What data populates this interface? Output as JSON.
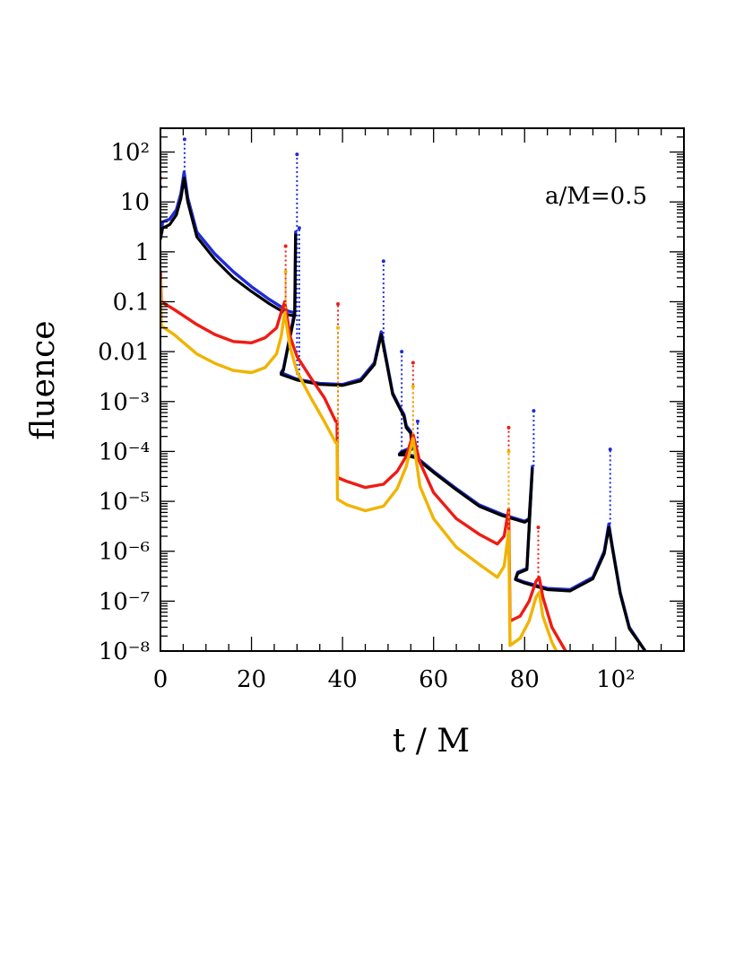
{
  "chart_data": {
    "type": "line",
    "xlabel": "t / M",
    "ylabel": "fluence",
    "annotation": "a/M=0.5",
    "xlim": [
      0,
      115
    ],
    "ylim": [
      1e-08,
      300
    ],
    "y_scale": "log",
    "grid": false,
    "x_ticks": [
      {
        "value": 0,
        "label": "0"
      },
      {
        "value": 20,
        "label": "20"
      },
      {
        "value": 40,
        "label": "40"
      },
      {
        "value": 60,
        "label": "60"
      },
      {
        "value": 80,
        "label": "80"
      },
      {
        "value": 100,
        "label": "10²"
      }
    ],
    "y_ticks": [
      {
        "value": 100,
        "label": "10²"
      },
      {
        "value": 10,
        "label": "10"
      },
      {
        "value": 1,
        "label": "1"
      },
      {
        "value": 0.1,
        "label": "0.1"
      },
      {
        "value": 0.01,
        "label": "0.01"
      },
      {
        "value": 0.001,
        "label": "10⁻³"
      },
      {
        "value": 0.0001,
        "label": "10⁻⁴"
      },
      {
        "value": 1e-05,
        "label": "10⁻⁵"
      },
      {
        "value": 1e-06,
        "label": "10⁻⁶"
      },
      {
        "value": 1e-07,
        "label": "10⁻⁷"
      },
      {
        "value": 1e-08,
        "label": "10⁻⁸"
      }
    ],
    "series": [
      {
        "color": "#1f2bd6",
        "points": [
          [
            0,
            2
          ],
          [
            0.5,
            4
          ],
          [
            2,
            4.5
          ],
          [
            3.5,
            7
          ],
          [
            4.5,
            15
          ],
          [
            5.2,
            40
          ],
          [
            6,
            12
          ],
          [
            8,
            2.5
          ],
          [
            12,
            0.9
          ],
          [
            16,
            0.4
          ],
          [
            20,
            0.2
          ],
          [
            24,
            0.11
          ],
          [
            28,
            0.065
          ],
          [
            29.5,
            0.06
          ],
          [
            29.7,
            2.5
          ],
          [
            29.5,
            0.065
          ],
          [
            28,
            0.013
          ],
          [
            27,
            0.0045
          ],
          [
            26.5,
            0.0038
          ],
          [
            30,
            0.0028
          ],
          [
            35,
            0.0023
          ],
          [
            40,
            0.0022
          ],
          [
            44,
            0.0028
          ],
          [
            47,
            0.006
          ],
          [
            48.5,
            0.025
          ],
          [
            49.3,
            0.01
          ],
          [
            51,
            0.0015
          ],
          [
            52.5,
            0.0008
          ],
          [
            53.5,
            0.00055
          ],
          [
            54,
            0.00033
          ],
          [
            55,
            0.00025
          ],
          [
            55.2,
            0.00012
          ],
          [
            53,
            0.0001
          ],
          [
            52.5,
            9e-05
          ],
          [
            53.5,
            9e-05
          ],
          [
            56,
            8e-05
          ],
          [
            60,
            4e-05
          ],
          [
            65,
            1.8e-05
          ],
          [
            70,
            8.5e-06
          ],
          [
            75,
            5.5e-06
          ],
          [
            80,
            4e-06
          ],
          [
            81,
            4.5e-06
          ],
          [
            81.7,
            5e-05
          ],
          [
            80.5,
            4.5e-07
          ],
          [
            78.5,
            3.8e-07
          ],
          [
            78,
            2.8e-07
          ],
          [
            80,
            2.4e-07
          ],
          [
            85,
            1.8e-07
          ],
          [
            90,
            1.7e-07
          ],
          [
            95,
            3e-07
          ],
          [
            97.5,
            1e-06
          ],
          [
            98.5,
            3.5e-06
          ],
          [
            99.3,
            1.2e-06
          ],
          [
            101,
            1.5e-07
          ],
          [
            103,
            3e-08
          ],
          [
            106.5,
            1e-08
          ]
        ],
        "spikes": [
          [
            0,
            20
          ],
          [
            5.3,
            180
          ],
          [
            30,
            90
          ],
          [
            30.5,
            3
          ],
          [
            49,
            0.65
          ],
          [
            53,
            0.01
          ],
          [
            56.5,
            0.0004
          ],
          [
            82,
            0.00065
          ],
          [
            98.8,
            0.00011
          ]
        ]
      },
      {
        "color": "#000000",
        "points": [
          [
            0,
            1.8
          ],
          [
            0.5,
            3
          ],
          [
            2,
            3.5
          ],
          [
            3.5,
            5.5
          ],
          [
            4.5,
            12
          ],
          [
            5.2,
            30
          ],
          [
            6,
            10
          ],
          [
            8,
            2
          ],
          [
            12,
            0.7
          ],
          [
            16,
            0.3
          ],
          [
            20,
            0.16
          ],
          [
            24,
            0.09
          ],
          [
            28,
            0.055
          ],
          [
            29.5,
            0.052
          ],
          [
            29.7,
            2.2
          ],
          [
            29.5,
            0.055
          ],
          [
            28,
            0.012
          ],
          [
            27,
            0.0042
          ],
          [
            26.5,
            0.0035
          ],
          [
            30,
            0.0027
          ],
          [
            35,
            0.0022
          ],
          [
            40,
            0.0021
          ],
          [
            44,
            0.0026
          ],
          [
            47,
            0.0055
          ],
          [
            48.5,
            0.022
          ],
          [
            49.3,
            0.009
          ],
          [
            51,
            0.0014
          ],
          [
            52.5,
            0.00075
          ],
          [
            53.5,
            0.0005
          ],
          [
            54,
            0.0003
          ],
          [
            55,
            0.00023
          ],
          [
            55.2,
            0.00011
          ],
          [
            53,
            9.5e-05
          ],
          [
            52.5,
            8.5e-05
          ],
          [
            53.5,
            8.5e-05
          ],
          [
            56,
            7.5e-05
          ],
          [
            60,
            3.8e-05
          ],
          [
            65,
            1.7e-05
          ],
          [
            70,
            8e-06
          ],
          [
            75,
            5.2e-06
          ],
          [
            80,
            3.8e-06
          ],
          [
            81,
            4.3e-06
          ],
          [
            81.7,
            4.5e-05
          ],
          [
            80.5,
            4.3e-07
          ],
          [
            78.5,
            3.6e-07
          ],
          [
            78,
            2.7e-07
          ],
          [
            80,
            2.3e-07
          ],
          [
            85,
            1.7e-07
          ],
          [
            90,
            1.6e-07
          ],
          [
            95,
            2.8e-07
          ],
          [
            97.5,
            9e-07
          ],
          [
            98.5,
            3e-06
          ],
          [
            99.3,
            1.1e-06
          ],
          [
            101,
            1.4e-07
          ],
          [
            103,
            2.8e-08
          ],
          [
            106.5,
            1e-08
          ]
        ],
        "spikes": []
      },
      {
        "color": "#ee1c14",
        "points": [
          [
            0,
            0.4
          ],
          [
            0.2,
            0.1
          ],
          [
            3,
            0.07
          ],
          [
            8,
            0.035
          ],
          [
            12,
            0.022
          ],
          [
            16,
            0.016
          ],
          [
            20,
            0.015
          ],
          [
            23,
            0.019
          ],
          [
            25.5,
            0.03
          ],
          [
            26.5,
            0.06
          ],
          [
            27.3,
            0.1
          ],
          [
            28.5,
            0.02
          ],
          [
            30,
            0.008
          ],
          [
            33,
            0.003
          ],
          [
            36,
            0.0012
          ],
          [
            38.5,
            0.0004
          ],
          [
            38.8,
            0.0004
          ],
          [
            38.9,
            3e-05
          ],
          [
            41,
            2.5e-05
          ],
          [
            45,
            1.9e-05
          ],
          [
            49,
            2.2e-05
          ],
          [
            52,
            4e-05
          ],
          [
            54,
            8e-05
          ],
          [
            55.5,
            0.00022
          ],
          [
            57,
            6e-05
          ],
          [
            60,
            1.5e-05
          ],
          [
            65,
            4.5e-06
          ],
          [
            70,
            2.2e-06
          ],
          [
            74,
            1.4e-06
          ],
          [
            75.5,
            2e-06
          ],
          [
            76.5,
            7e-06
          ],
          [
            76.8,
            4e-08
          ],
          [
            79,
            5e-08
          ],
          [
            81,
            1e-07
          ],
          [
            82.5,
            2.5e-07
          ],
          [
            83.2,
            3e-07
          ],
          [
            84,
            1.2e-07
          ],
          [
            86,
            3e-08
          ],
          [
            89,
            1e-08
          ]
        ],
        "spikes": [
          [
            0,
            30
          ],
          [
            27.5,
            1.3
          ],
          [
            39,
            0.09
          ],
          [
            55.5,
            0.006
          ],
          [
            76.5,
            0.0003
          ],
          [
            83,
            3e-06
          ]
        ]
      },
      {
        "color": "#f0b400",
        "points": [
          [
            0,
            0.3
          ],
          [
            0.2,
            0.033
          ],
          [
            3,
            0.022
          ],
          [
            8,
            0.009
          ],
          [
            12,
            0.0058
          ],
          [
            16,
            0.0042
          ],
          [
            20,
            0.0038
          ],
          [
            23,
            0.0048
          ],
          [
            25.5,
            0.009
          ],
          [
            26.5,
            0.02
          ],
          [
            27.3,
            0.06
          ],
          [
            28.5,
            0.012
          ],
          [
            30,
            0.004
          ],
          [
            33,
            0.0012
          ],
          [
            36,
            0.0004
          ],
          [
            38.5,
            0.00015
          ],
          [
            38.8,
            0.00015
          ],
          [
            38.9,
            1.1e-05
          ],
          [
            41,
            8.5e-06
          ],
          [
            45,
            6.5e-06
          ],
          [
            49,
            8e-06
          ],
          [
            52,
            1.8e-05
          ],
          [
            54,
            5e-05
          ],
          [
            55.5,
            0.00018
          ],
          [
            57,
            2e-05
          ],
          [
            60,
            4.5e-06
          ],
          [
            65,
            1.2e-06
          ],
          [
            70,
            5.5e-07
          ],
          [
            74,
            3e-07
          ],
          [
            75.5,
            5e-07
          ],
          [
            76.5,
            2.5e-06
          ],
          [
            76.8,
            1.3e-08
          ],
          [
            79,
            1.8e-08
          ],
          [
            81,
            4e-08
          ],
          [
            82.5,
            1.2e-07
          ],
          [
            83.2,
            1.5e-07
          ],
          [
            84,
            5e-08
          ],
          [
            86,
            1.5e-08
          ],
          [
            87,
            1e-08
          ]
        ],
        "spikes": [
          [
            27.5,
            0.4
          ],
          [
            39,
            0.03
          ],
          [
            55.5,
            0.002
          ],
          [
            76.5,
            0.0001
          ]
        ]
      }
    ]
  }
}
